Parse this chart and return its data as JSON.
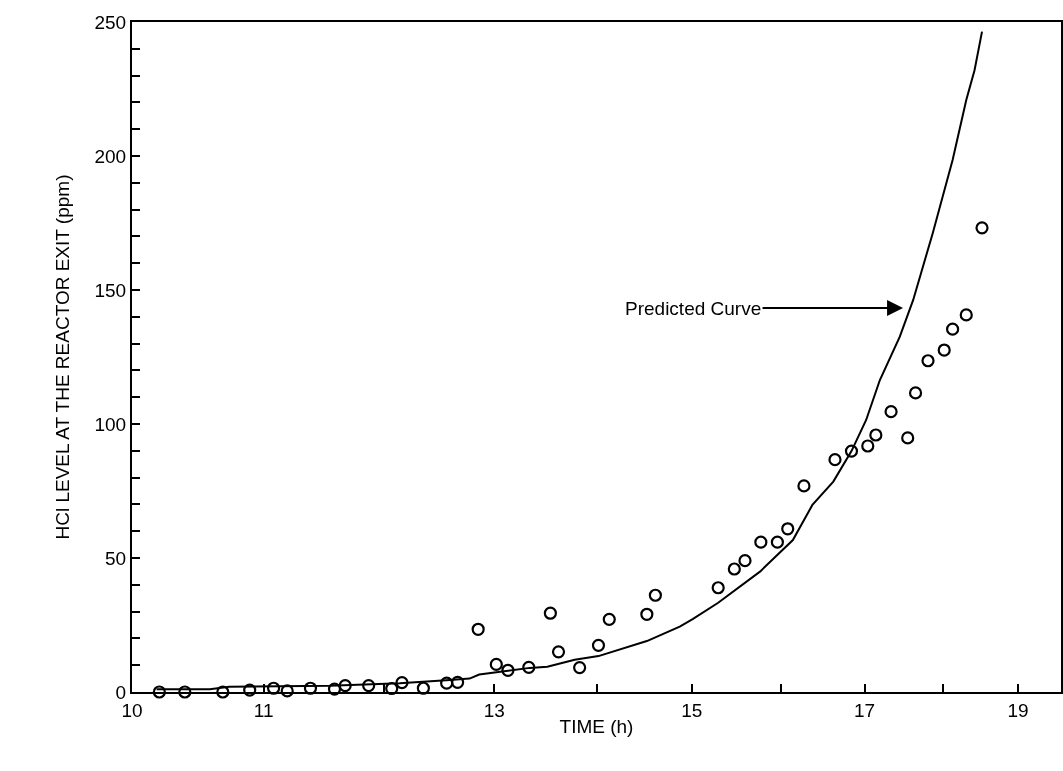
{
  "chart_data": {
    "type": "scatter",
    "xlabel": "TIME (h)",
    "ylabel": "HCl LEVEL AT THE REACTOR EXIT (ppm)",
    "log": "x",
    "xlim": [
      10,
      19.6
    ],
    "xticks": [
      10,
      11,
      {
        "value": 12,
        "label": null
      },
      13,
      {
        "value": 14,
        "label": null
      },
      15,
      {
        "value": 16,
        "label": null
      },
      17,
      {
        "value": 18,
        "label": null
      },
      19
    ],
    "ylim": [
      0,
      250
    ],
    "yticks": [
      0,
      {
        "value": 10,
        "label": null
      },
      {
        "value": 20,
        "label": null
      },
      {
        "value": 30,
        "label": null
      },
      {
        "value": 40,
        "label": null
      },
      50,
      {
        "value": 60,
        "label": null
      },
      {
        "value": 70,
        "label": null
      },
      {
        "value": 80,
        "label": null
      },
      {
        "value": 90,
        "label": null
      },
      100,
      {
        "value": 110,
        "label": null
      },
      {
        "value": 120,
        "label": null
      },
      {
        "value": 130,
        "label": null
      },
      {
        "value": 140,
        "label": null
      },
      150,
      {
        "value": 160,
        "label": null
      },
      {
        "value": 170,
        "label": null
      },
      {
        "value": 180,
        "label": null
      },
      {
        "value": 190,
        "label": null
      },
      200,
      {
        "value": 210,
        "label": null
      },
      {
        "value": 220,
        "label": null
      },
      {
        "value": 230,
        "label": null
      },
      {
        "value": 240,
        "label": null
      },
      250
    ],
    "series": [
      {
        "marker": "circle",
        "color": "#000000",
        "x": [
          10.2,
          10.39,
          10.68,
          10.89,
          11.08,
          11.19,
          11.38,
          11.58,
          11.67,
          11.87,
          12.07,
          12.16,
          12.35,
          12.56,
          12.66,
          12.85,
          13.02,
          13.13,
          13.33,
          13.54,
          13.62,
          13.83,
          14.02,
          14.13,
          14.52,
          14.61,
          15.29,
          15.47,
          15.59,
          15.77,
          15.96,
          16.08,
          16.27,
          16.64,
          16.84,
          17.04,
          17.14,
          17.33,
          17.54,
          17.64,
          17.8,
          18.01,
          18.12,
          18.3,
          18.51
        ],
        "values": [
          0,
          0,
          0,
          0.7,
          1.4,
          0.4,
          1.4,
          1.1,
          2.4,
          2.4,
          1.3,
          3.5,
          1.4,
          3.3,
          3.6,
          23.4,
          10.3,
          8.1,
          9.2,
          29.4,
          15,
          9.1,
          17.4,
          27.1,
          29,
          36.1,
          38.9,
          45.9,
          49,
          55.9,
          55.9,
          60.9,
          76.9,
          86.7,
          89.9,
          91.8,
          95.9,
          104.6,
          94.8,
          111.6,
          123.6,
          127.6,
          135.4,
          140.7,
          173.2
        ]
      },
      {
        "type": "line",
        "marker": "none",
        "line_style": "solid",
        "color": "#000000",
        "x": [
          10.18,
          10.58,
          10.73,
          11.54,
          12.14,
          12.59,
          12.77,
          12.86,
          13.34,
          13.51,
          13.78,
          14.02,
          14.52,
          14.87,
          15.01,
          15.29,
          15.76,
          16.14,
          16.37,
          16.62,
          16.84,
          17.02,
          17.19,
          17.44,
          17.61,
          17.86,
          18.12,
          18.3,
          18.41,
          18.51
        ],
        "values": [
          1,
          1,
          2,
          2.3,
          3.3,
          4.5,
          5,
          6.5,
          9,
          9.4,
          12,
          13.4,
          19,
          24.4,
          27.2,
          33.3,
          44.9,
          56.7,
          69.8,
          78.5,
          89.9,
          101.5,
          116.4,
          132.6,
          146.3,
          171.1,
          198.5,
          220.9,
          232,
          246.4
        ]
      }
    ],
    "annotations": [
      "Predicted Curve"
    ]
  }
}
